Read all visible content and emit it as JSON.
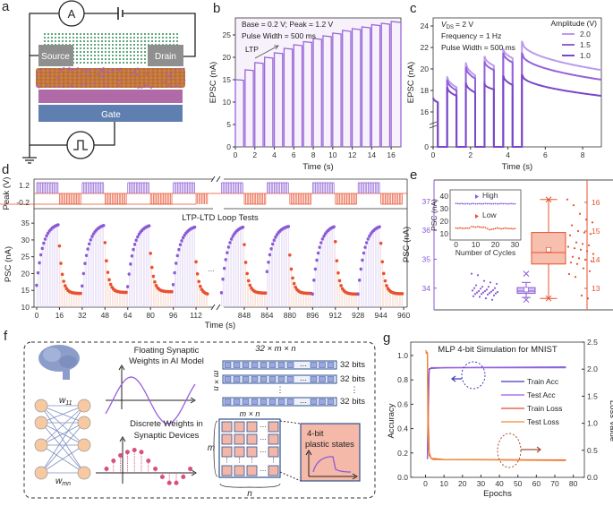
{
  "panel_labels": {
    "a": "a",
    "b": "b",
    "c": "c",
    "d": "d",
    "e": "e",
    "f": "f",
    "g": "g"
  },
  "panel_a": {
    "ammeter": "A",
    "source": "Source",
    "drain": "Drain",
    "gate": "Gate",
    "colors": {
      "source_drain": "#8f8f8f",
      "channel": "#c4783e",
      "dielectric": "#b06aa8",
      "gate": "#5f7fb0",
      "ions": "#2e8b57"
    }
  },
  "chart_data": [
    {
      "panel": "b",
      "type": "line",
      "xlabel": "Time (s)",
      "ylabel": "EPSC (nA)",
      "xlim": [
        0,
        17
      ],
      "ylim": [
        0,
        28.8
      ],
      "xticks": [
        0,
        2,
        4,
        6,
        8,
        10,
        12,
        14,
        16
      ],
      "yticks": [
        0,
        5,
        10,
        15,
        20,
        25
      ],
      "annotations": [
        "Base = 0.2 V; Peak = 1.2 V",
        "Pulse Width = 500 ms",
        "LTP"
      ],
      "pulse_times": [
        0,
        1,
        2,
        3,
        4,
        5,
        6,
        7,
        8,
        9,
        10,
        11,
        12,
        13,
        14,
        15,
        16
      ],
      "peak_values": [
        15,
        17.2,
        18.8,
        20,
        21,
        22,
        22.8,
        23.5,
        24.2,
        24.8,
        25.4,
        26,
        26.4,
        26.8,
        27.3,
        27.6,
        28
      ],
      "color": "#9a68d8",
      "background": "#f7f1fb"
    },
    {
      "panel": "c",
      "type": "line",
      "xlabel": "Time (s)",
      "ylabel": "EPSC (nA)",
      "xlim": [
        0,
        9
      ],
      "ylim": [
        0,
        24.3
      ],
      "axis_break": [
        0,
        16
      ],
      "xticks": [
        0,
        2,
        4,
        6,
        8
      ],
      "yticks": [
        0,
        16,
        18,
        20,
        22,
        24
      ],
      "annotations": [
        "V",
        "DS",
        "= 2 V",
        "Frequency = 1 Hz",
        "Pulse Width = 500 ms"
      ],
      "legend_title": "Amplitude (V)",
      "pulse_starts": [
        0.75,
        1.75,
        2.75,
        3.75,
        4.75
      ],
      "series": [
        {
          "name": "2.0",
          "color": "#bb9aee",
          "initial": [
            17.3,
            16.9
          ],
          "pulses": [
            [
              19.3,
              18.3
            ],
            [
              20.6,
              19.4
            ],
            [
              21.2,
              20.3
            ],
            [
              21.9,
              21.0
            ],
            [
              22.6,
              19.9
            ]
          ]
        },
        {
          "name": "1.5",
          "color": "#9561d9",
          "initial": [
            17.3,
            16.9
          ],
          "pulses": [
            [
              19.0,
              18.0
            ],
            [
              20.2,
              19.1
            ],
            [
              20.7,
              19.9
            ],
            [
              21.5,
              20.6
            ],
            [
              21.5,
              19.0
            ]
          ]
        },
        {
          "name": "1.0",
          "color": "#7b46c9",
          "initial": [
            17.3,
            16.9
          ],
          "pulses": [
            [
              18.3,
              17.5
            ],
            [
              18.7,
              17.8
            ],
            [
              18.6,
              18.1
            ],
            [
              19.4,
              18.5
            ],
            [
              19.5,
              17.5
            ]
          ]
        }
      ]
    },
    {
      "panel": "d",
      "type": "scatter",
      "title": "LTP-LTD Loop Tests",
      "xlabel": "Time (s)",
      "ylabel": "PSC (nA)",
      "pulse_ylabel": "Peak (V)",
      "pulse_levels": [
        "1.2",
        "-0.2"
      ],
      "x_segments": [
        [
          0,
          120
        ],
        [
          832,
          960
        ]
      ],
      "ylim": [
        10,
        39.3
      ],
      "xticks": [
        "0",
        "16",
        "32",
        "48",
        "64",
        "80",
        "96",
        "112",
        "848",
        "864",
        "880",
        "896",
        "912",
        "928",
        "944",
        "960"
      ],
      "yticks": [
        10,
        15,
        20,
        25,
        30,
        35
      ],
      "ellipsis": "...",
      "cycles": [
        {
          "start": 0,
          "ltp": [
            16.5,
            34.5
          ],
          "ltd": [
            28.2,
            14.1
          ]
        },
        {
          "start": 32,
          "ltp": [
            16.3,
            34.3
          ],
          "ltd": [
            29.2,
            14.4
          ]
        },
        {
          "start": 64,
          "ltp": [
            16.1,
            34.2
          ],
          "ltd": [
            26.0,
            14.6
          ]
        },
        {
          "start": 96,
          "ltp": [
            16.7,
            33.8
          ],
          "ltd": [
            23.5,
            13.7
          ]
        },
        {
          "start": 832,
          "ltp": [
            14.3,
            33.8
          ],
          "ltd": [
            28.6,
            14.2
          ]
        },
        {
          "start": 864,
          "ltp": [
            20.6,
            34.0
          ],
          "ltd": [
            25.5,
            14.1
          ]
        },
        {
          "start": 896,
          "ltp": [
            13.9,
            33.9
          ],
          "ltd": [
            29.5,
            13.9
          ]
        },
        {
          "start": 928,
          "ltp": [
            13.9,
            33.9
          ],
          "ltd": [
            29.0,
            14.0
          ]
        }
      ],
      "ltp_color": "#8a5ad6",
      "ltd_color": "#e8502e"
    },
    {
      "panel": "e",
      "type": "box",
      "ylabel": "PSC (nA)",
      "left_ylim": [
        33.25,
        37.74
      ],
      "right_ylim": [
        12.25,
        16.78
      ],
      "left_yticks": [
        34,
        35,
        36,
        37
      ],
      "right_yticks": [
        13,
        14,
        15,
        16
      ],
      "left_color": "#8a5ad6",
      "right_color": "#e8502e",
      "high": {
        "values": [
          34.5,
          34.45,
          34.25,
          34.2,
          34.15,
          34.1,
          34.05,
          34.05,
          34.0,
          34.0,
          33.98,
          33.95,
          33.93,
          33.92,
          33.9,
          33.9,
          33.88,
          33.87,
          33.85,
          33.85,
          33.83,
          33.82,
          33.8,
          33.8,
          33.78,
          33.75,
          33.72,
          33.7,
          33.65,
          33.6
        ],
        "box": {
          "q1": 33.82,
          "median": 33.9,
          "q3": 34.02,
          "mean": 33.95,
          "whisker_low": 33.68,
          "whisker_high": 34.2,
          "min": 33.6,
          "max": 34.5
        }
      },
      "low": {
        "values": [
          16.1,
          15.9,
          15.6,
          15.4,
          15.3,
          15.2,
          15.0,
          14.95,
          14.9,
          14.85,
          14.6,
          14.55,
          14.5,
          14.45,
          14.4,
          14.35,
          14.3,
          14.2,
          14.1,
          14.05,
          14.0,
          13.95,
          13.9,
          13.85,
          13.7,
          13.6,
          13.5,
          13.4,
          12.75,
          12.65
        ],
        "box": {
          "q1": 13.85,
          "median": 14.25,
          "q3": 14.95,
          "mean": 14.35,
          "whisker_low": 12.65,
          "whisker_high": 16.1,
          "min": 12.65,
          "max": 16.1
        }
      }
    },
    {
      "panel": "e-inset",
      "type": "scatter",
      "xlabel": "Number of Cycles",
      "ylabel": "PSC (nA)",
      "xlim": [
        -3,
        33
      ],
      "ylim": [
        5,
        45
      ],
      "xticks": [
        0,
        10,
        20,
        30
      ],
      "yticks": [
        10,
        20,
        30,
        40
      ],
      "series": [
        {
          "name": "High",
          "color": "#8a5ad6",
          "values": [
            34.2,
            34.0,
            33.9,
            34.1,
            33.8,
            33.9,
            34.0,
            33.7,
            33.9,
            34.1,
            33.8,
            33.9,
            34.0,
            33.8,
            33.9,
            34.1,
            33.9,
            34.0,
            33.8,
            33.9,
            34.0,
            33.8,
            33.9,
            34.1,
            33.9,
            34.0,
            33.8,
            33.9,
            34.0,
            33.9,
            33.8
          ]
        },
        {
          "name": "Low",
          "color": "#e8502e",
          "values": [
            14.5,
            14.3,
            14.6,
            14.4,
            14.2,
            14.5,
            14.3,
            14.6,
            15.8,
            15.5,
            15.2,
            15.6,
            15.4,
            15.0,
            15.3,
            14.8,
            14.0,
            13.2,
            13.5,
            13.8,
            14.2,
            14.6,
            14.3,
            13.9,
            14.1,
            14.5,
            14.3,
            14.0,
            14.2,
            13.9,
            14.1
          ]
        }
      ]
    },
    {
      "panel": "g",
      "type": "line",
      "title": "MLP 4-bit Simulation for MNIST",
      "xlabel": "Epochs",
      "ylabel": "Accuracy",
      "y2label": "Loss Value",
      "xlim": [
        -8,
        86
      ],
      "ylim": [
        0,
        1.11
      ],
      "y2lim": [
        0,
        2.5
      ],
      "xticks": [
        0,
        10,
        20,
        30,
        40,
        50,
        60,
        70,
        80
      ],
      "yticks": [
        "0.0",
        "0.2",
        "0.4",
        "0.6",
        "0.8",
        "1.0"
      ],
      "y2ticks": [
        "0.0",
        "0.5",
        "1.0",
        "1.5",
        "2.0",
        "2.5"
      ],
      "series": [
        {
          "name": "Train Acc",
          "axis": "left",
          "color": "#3b3bbf",
          "points": [
            [
              1,
              0.15
            ],
            [
              1.5,
              0.7
            ],
            [
              2,
              0.89
            ],
            [
              3,
              0.895
            ],
            [
              10,
              0.9
            ],
            [
              76,
              0.905
            ]
          ]
        },
        {
          "name": "Test Acc",
          "axis": "left",
          "color": "#9b5de0",
          "points": [
            [
              1,
              0.15
            ],
            [
              2,
              0.88
            ],
            [
              3,
              0.9
            ],
            [
              76,
              0.9
            ]
          ]
        },
        {
          "name": "Train Loss",
          "axis": "right",
          "color": "#e84a2a",
          "points": [
            [
              0,
              2.3
            ],
            [
              1,
              2.3
            ],
            [
              1.5,
              1.0
            ],
            [
              2,
              0.45
            ],
            [
              3,
              0.35
            ],
            [
              10,
              0.33
            ],
            [
              76,
              0.32
            ]
          ]
        },
        {
          "name": "Test Loss",
          "axis": "right",
          "color": "#f08a30",
          "points": [
            [
              0,
              2.35
            ],
            [
              1,
              2.3
            ],
            [
              1.3,
              0.8
            ],
            [
              2,
              0.4
            ],
            [
              4,
              0.33
            ],
            [
              76,
              0.31
            ]
          ]
        }
      ]
    }
  ],
  "panel_f": {
    "w11": "w",
    "w11_sub": "11",
    "wmn": "w",
    "wmn_sub": "mn",
    "floating_1": "Floating Synaptic",
    "floating_2": "Weights in AI Model",
    "discrete_1": "Discrete Weights in",
    "discrete_2": "Synaptic Devices",
    "matrix_title": "32 × m × n",
    "row_label": "m × n",
    "bits": [
      "32 bits",
      "32 bits",
      "32 bits"
    ],
    "grid_title": "m × n",
    "grid_rows": "m",
    "grid_cols": "n",
    "state_1": "4-bit",
    "state_2": "plastic states",
    "stem_values": [
      0.3,
      0.9,
      1.3,
      1.55,
      1.7,
      1.55,
      0.9,
      0.3,
      -0.3,
      -0.75,
      -0.75,
      -0.3,
      0.3
    ]
  }
}
